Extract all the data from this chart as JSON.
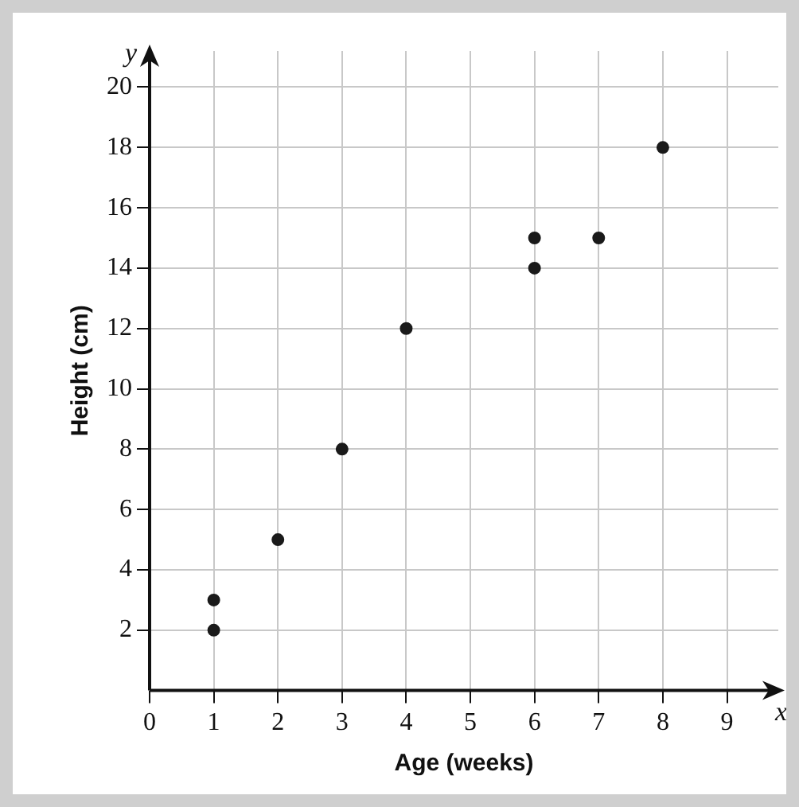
{
  "chart_data": {
    "type": "scatter",
    "xlabel": "Age (weeks)",
    "ylabel": "Height (cm)",
    "annotations": [
      "x",
      "y"
    ],
    "x": [
      1,
      1,
      2,
      3,
      4,
      6,
      6,
      7,
      8
    ],
    "series": [
      {
        "color": "#1a1a1a",
        "values": [
          2,
          3,
          5,
          8,
          12,
          14,
          15,
          15,
          18
        ]
      }
    ],
    "xlim": [
      0,
      9.8
    ],
    "ylim": [
      0,
      21.2
    ],
    "xticks": [
      0,
      1,
      2,
      3,
      4,
      5,
      6,
      7,
      8,
      9
    ],
    "yticks": [
      2,
      4,
      6,
      8,
      10,
      12,
      14,
      16,
      18,
      20
    ],
    "grid": true,
    "legend": false,
    "marker": "circle"
  }
}
